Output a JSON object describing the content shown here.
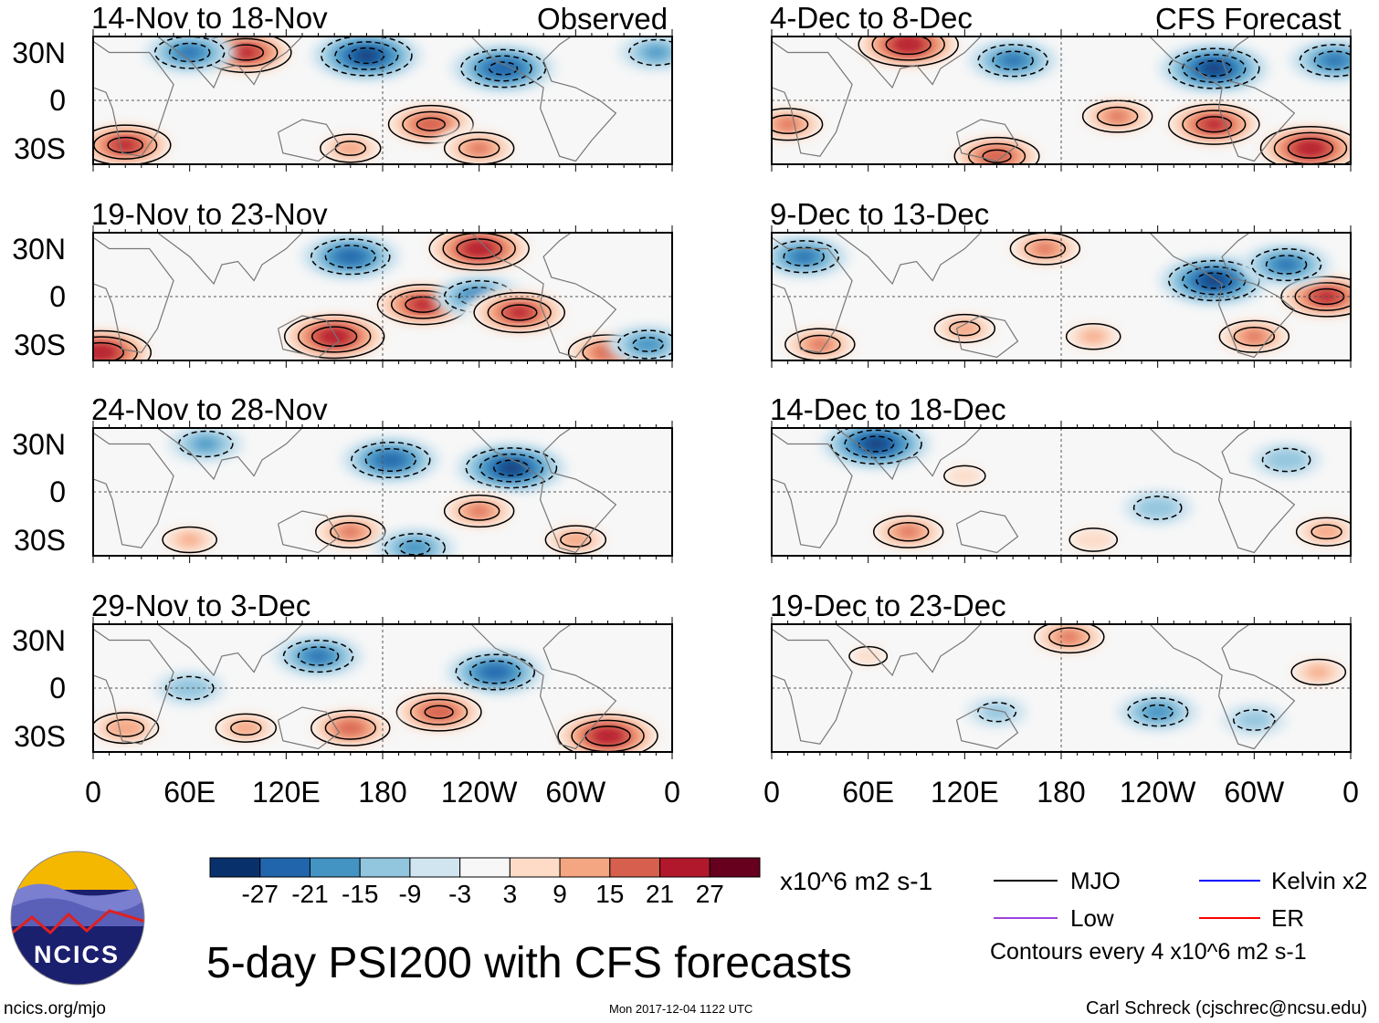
{
  "left_header": "Observed",
  "right_header": "CFS Forecast",
  "lat_labels": [
    "30N",
    "0",
    "30S"
  ],
  "lon_labels": [
    "0",
    "60E",
    "120E",
    "180",
    "120W",
    "60W",
    "0"
  ],
  "lon_values": [
    0,
    60,
    120,
    180,
    240,
    300,
    360
  ],
  "panels": [
    {
      "title": "14-Nov to 18-Nov",
      "col": 0,
      "row": 0,
      "blobs": [
        [
          170,
          28,
          -22
        ],
        [
          95,
          30,
          22
        ],
        [
          210,
          -15,
          20
        ],
        [
          20,
          -28,
          22
        ],
        [
          60,
          30,
          -15
        ],
        [
          255,
          20,
          -20
        ],
        [
          160,
          -30,
          12
        ],
        [
          240,
          -30,
          15
        ],
        [
          350,
          30,
          -10
        ]
      ]
    },
    {
      "title": "19-Nov to 23-Nov",
      "col": 0,
      "row": 1,
      "blobs": [
        [
          205,
          -5,
          22
        ],
        [
          160,
          25,
          -18
        ],
        [
          150,
          -25,
          25
        ],
        [
          5,
          -35,
          25
        ],
        [
          240,
          30,
          25
        ],
        [
          240,
          0,
          -15
        ],
        [
          265,
          -10,
          22
        ],
        [
          320,
          -35,
          18
        ],
        [
          345,
          -30,
          -12
        ]
      ]
    },
    {
      "title": "24-Nov to 28-Nov",
      "col": 0,
      "row": 2,
      "blobs": [
        [
          185,
          20,
          -18
        ],
        [
          260,
          15,
          -22
        ],
        [
          160,
          -25,
          15
        ],
        [
          240,
          -12,
          15
        ],
        [
          70,
          30,
          -10
        ],
        [
          60,
          -30,
          10
        ],
        [
          200,
          -35,
          -12
        ],
        [
          300,
          -30,
          12
        ]
      ]
    },
    {
      "title": "29-Nov to 3-Dec",
      "col": 0,
      "row": 3,
      "blobs": [
        [
          140,
          20,
          -15
        ],
        [
          250,
          10,
          -18
        ],
        [
          215,
          -15,
          20
        ],
        [
          320,
          -30,
          25
        ],
        [
          20,
          -25,
          14
        ],
        [
          160,
          -25,
          18
        ],
        [
          95,
          -25,
          12
        ],
        [
          60,
          0,
          -8
        ]
      ]
    },
    {
      "title": "4-Dec to 8-Dec",
      "col": 1,
      "row": 0,
      "blobs": [
        [
          85,
          35,
          25
        ],
        [
          150,
          25,
          -15
        ],
        [
          275,
          20,
          -22
        ],
        [
          275,
          -15,
          22
        ],
        [
          335,
          -30,
          25
        ],
        [
          10,
          -15,
          15
        ],
        [
          140,
          -35,
          20
        ],
        [
          350,
          25,
          -15
        ],
        [
          215,
          -10,
          15
        ]
      ]
    },
    {
      "title": "9-Dec to 13-Dec",
      "col": 1,
      "row": 1,
      "blobs": [
        [
          20,
          25,
          -15
        ],
        [
          170,
          30,
          15
        ],
        [
          275,
          10,
          -22
        ],
        [
          345,
          0,
          22
        ],
        [
          30,
          -30,
          15
        ],
        [
          320,
          20,
          -15
        ],
        [
          300,
          -25,
          15
        ],
        [
          120,
          -20,
          12
        ],
        [
          200,
          -25,
          10
        ]
      ]
    },
    {
      "title": "14-Dec to 18-Dec",
      "col": 1,
      "row": 2,
      "blobs": [
        [
          65,
          30,
          -22
        ],
        [
          85,
          -25,
          15
        ],
        [
          345,
          -25,
          12
        ],
        [
          320,
          20,
          -8
        ],
        [
          240,
          -10,
          -8
        ],
        [
          120,
          10,
          6
        ],
        [
          200,
          -30,
          8
        ]
      ]
    },
    {
      "title": "19-Dec to 23-Dec",
      "col": 1,
      "row": 3,
      "blobs": [
        [
          185,
          32,
          15
        ],
        [
          240,
          -15,
          -12
        ],
        [
          340,
          10,
          10
        ],
        [
          60,
          20,
          5
        ],
        [
          300,
          -20,
          -6
        ],
        [
          140,
          -15,
          -5
        ]
      ]
    }
  ],
  "colorbar": {
    "labels": [
      "-27",
      "-21",
      "-15",
      "-9",
      "-3",
      "3",
      "9",
      "15",
      "21",
      "27"
    ],
    "colors": [
      "#08306b",
      "#2166ac",
      "#4393c3",
      "#92c5de",
      "#d1e5f0",
      "#f7f7f7",
      "#fddbc7",
      "#f4a582",
      "#d6604d",
      "#b2182b",
      "#67001f"
    ],
    "units": "x10^6 m2 s-1"
  },
  "legend": [
    {
      "label": "MJO",
      "color": "#000000"
    },
    {
      "label": "Kelvin x2",
      "color": "#0000ff"
    },
    {
      "label": "Low",
      "color": "#a040e0"
    },
    {
      "label": "ER",
      "color": "#ff0000"
    }
  ],
  "contour_note": "Contours every 4 x10^6 m2 s-1",
  "main_title": "5-day PSI200 with CFS forecasts",
  "logo_text": "NCICS",
  "url": "ncics.org/mjo",
  "timestamp": "Mon 2017-12-04 1122 UTC",
  "credit": "Carl Schreck (cjschrec@ncsu.edu)"
}
